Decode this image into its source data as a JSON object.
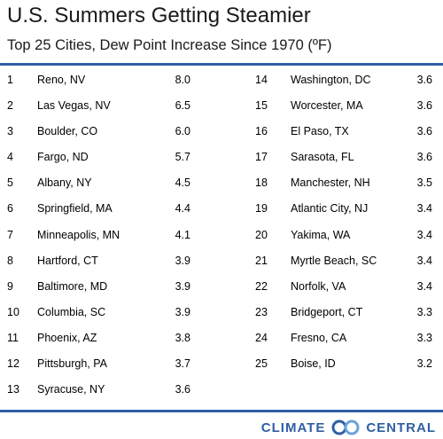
{
  "chart_data": {
    "type": "table",
    "title": "U.S. Summers Getting Steamier",
    "subtitle": "Top 25 Cities, Dew Point Increase Since 1970 (ºF)",
    "rows": [
      {
        "rank": "1",
        "city": "Reno, NV",
        "value": "8.0"
      },
      {
        "rank": "2",
        "city": "Las Vegas, NV",
        "value": "6.5"
      },
      {
        "rank": "3",
        "city": "Boulder, CO",
        "value": "6.0"
      },
      {
        "rank": "4",
        "city": "Fargo, ND",
        "value": "5.7"
      },
      {
        "rank": "5",
        "city": "Albany, NY",
        "value": "4.5"
      },
      {
        "rank": "6",
        "city": "Springfield, MA",
        "value": "4.4"
      },
      {
        "rank": "7",
        "city": "Minneapolis, MN",
        "value": "4.1"
      },
      {
        "rank": "8",
        "city": "Hartford, CT",
        "value": "3.9"
      },
      {
        "rank": "9",
        "city": "Baltimore, MD",
        "value": "3.9"
      },
      {
        "rank": "10",
        "city": "Columbia, SC",
        "value": "3.9"
      },
      {
        "rank": "11",
        "city": "Phoenix, AZ",
        "value": "3.8"
      },
      {
        "rank": "12",
        "city": "Pittsburgh, PA",
        "value": "3.7"
      },
      {
        "rank": "13",
        "city": "Syracuse, NY",
        "value": "3.6"
      },
      {
        "rank": "14",
        "city": "Washington, DC",
        "value": "3.6"
      },
      {
        "rank": "15",
        "city": "Worcester, MA",
        "value": "3.6"
      },
      {
        "rank": "16",
        "city": "El Paso, TX",
        "value": "3.6"
      },
      {
        "rank": "17",
        "city": "Sarasota, FL",
        "value": "3.6"
      },
      {
        "rank": "18",
        "city": "Manchester, NH",
        "value": "3.5"
      },
      {
        "rank": "19",
        "city": "Atlantic City, NJ",
        "value": "3.4"
      },
      {
        "rank": "20",
        "city": "Yakima, WA",
        "value": "3.4"
      },
      {
        "rank": "21",
        "city": "Myrtle Beach, SC",
        "value": "3.4"
      },
      {
        "rank": "22",
        "city": "Norfolk, VA",
        "value": "3.4"
      },
      {
        "rank": "23",
        "city": "Bridgeport, CT",
        "value": "3.3"
      },
      {
        "rank": "24",
        "city": "Fresno, CA",
        "value": "3.3"
      },
      {
        "rank": "25",
        "city": "Boise, ID",
        "value": "3.2"
      }
    ]
  },
  "branding": {
    "logo_left": "CLIMATE",
    "logo_right": "CENTRAL",
    "accent_color": "#2f5fa4"
  }
}
